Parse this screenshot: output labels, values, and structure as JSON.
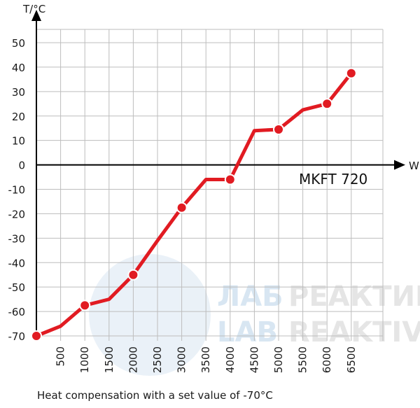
{
  "chart_data": {
    "type": "line",
    "title": "",
    "model_label": "MKFT 720",
    "caption": "Heat compensation with a set value of -70°C",
    "xlabel": "W",
    "ylabel": "T/°C",
    "x_ticks": [
      500,
      1000,
      1500,
      2000,
      2500,
      3000,
      3500,
      4000,
      4500,
      5000,
      5500,
      6000,
      6500
    ],
    "y_ticks": [
      50,
      40,
      30,
      20,
      10,
      0,
      -10,
      -20,
      -30,
      -40,
      -50,
      -60,
      -70
    ],
    "xlim": [
      0,
      7000
    ],
    "ylim": [
      -70,
      50
    ],
    "grid": true,
    "series": [
      {
        "x": [
          0,
          500,
          1000,
          1500,
          2000,
          2500,
          3000,
          3500,
          4000,
          4500,
          5000,
          5500,
          6000,
          6500
        ],
        "y": [
          -70,
          -66,
          -57.5,
          -55,
          -45,
          -31,
          -17.5,
          -6,
          -6,
          14,
          14.5,
          22.5,
          25,
          37.5
        ],
        "markers_at": [
          0,
          1000,
          2000,
          3000,
          4000,
          5000,
          6000,
          6500
        ]
      }
    ],
    "colors": {
      "line": "#e11b22",
      "marker_outline": "#ffffff",
      "grid": "#bdbdbd",
      "axis": "#000000"
    }
  },
  "watermark": {
    "line1_a": "ЛАБ",
    "line1_b": "РЕАКТИВ",
    "line2_a": "LAB",
    "line2_b": "REAKTIV",
    "color": "#b9d3e8"
  }
}
